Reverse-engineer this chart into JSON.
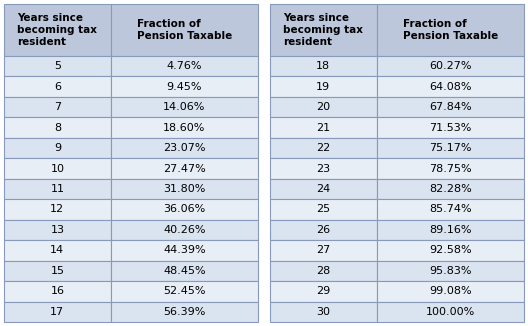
{
  "col1_header": [
    "Years since\nbecoming tax\nresident",
    "Fraction of\nPension Taxable"
  ],
  "col2_header": [
    "Years since\nbecoming tax\nresident",
    "Fraction of\nPension Taxable"
  ],
  "left_table": [
    [
      "5",
      "4.76%"
    ],
    [
      "6",
      "9.45%"
    ],
    [
      "7",
      "14.06%"
    ],
    [
      "8",
      "18.60%"
    ],
    [
      "9",
      "23.07%"
    ],
    [
      "10",
      "27.47%"
    ],
    [
      "11",
      "31.80%"
    ],
    [
      "12",
      "36.06%"
    ],
    [
      "13",
      "40.26%"
    ],
    [
      "14",
      "44.39%"
    ],
    [
      "15",
      "48.45%"
    ],
    [
      "16",
      "52.45%"
    ],
    [
      "17",
      "56.39%"
    ]
  ],
  "right_table": [
    [
      "18",
      "60.27%"
    ],
    [
      "19",
      "64.08%"
    ],
    [
      "20",
      "67.84%"
    ],
    [
      "21",
      "71.53%"
    ],
    [
      "22",
      "75.17%"
    ],
    [
      "23",
      "78.75%"
    ],
    [
      "24",
      "82.28%"
    ],
    [
      "25",
      "85.74%"
    ],
    [
      "26",
      "89.16%"
    ],
    [
      "27",
      "92.58%"
    ],
    [
      "28",
      "95.83%"
    ],
    [
      "29",
      "99.08%"
    ],
    [
      "30",
      "100.00%"
    ]
  ],
  "header_bg": "#BDC7DB",
  "row_bg_light": "#DAE3F0",
  "row_bg_lighter": "#E8EEF6",
  "border_color": "#8899BB",
  "text_color": "#000000",
  "header_fontsize": 7.5,
  "cell_fontsize": 8.0,
  "fig_bg": "#FFFFFF",
  "fig_width": 5.28,
  "fig_height": 3.26,
  "dpi": 100
}
